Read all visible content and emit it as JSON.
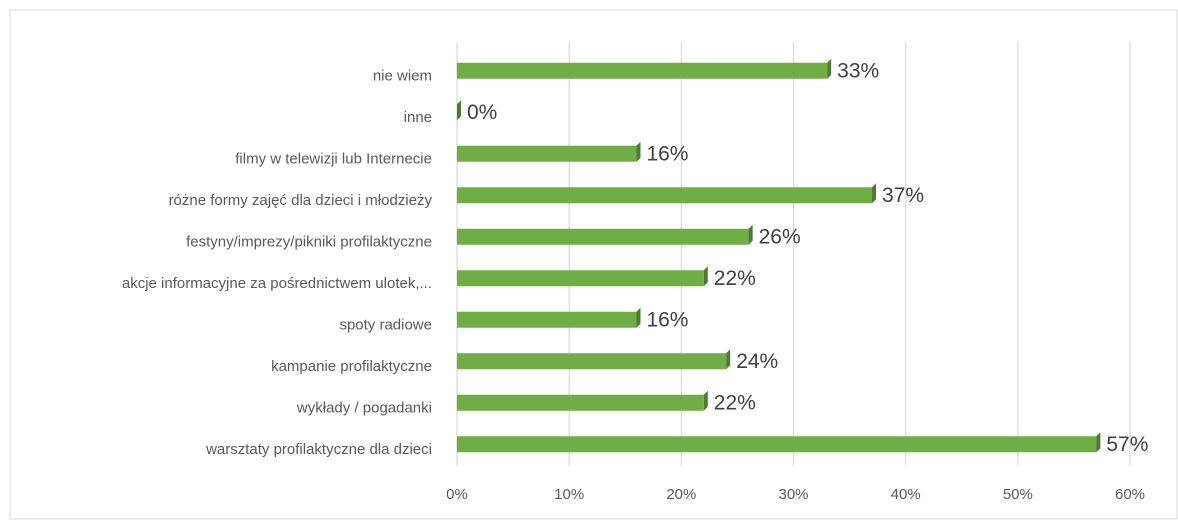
{
  "chart_data": {
    "type": "bar",
    "orientation": "horizontal",
    "categories": [
      "nie wiem",
      "inne",
      "filmy w telewizji lub Internecie",
      "różne formy zajęć dla dzieci i młodzieży",
      "festyny/imprezy/pikniki profilaktyczne",
      "akcje informacyjne za pośrednictwem ulotek,...",
      "spoty radiowe",
      "kampanie profilaktyczne",
      "wykłady / pogadanki",
      "warsztaty profilaktyczne dla dzieci"
    ],
    "values": [
      33,
      0,
      16,
      37,
      26,
      22,
      16,
      24,
      22,
      57
    ],
    "value_labels": [
      "33%",
      "0%",
      "16%",
      "37%",
      "26%",
      "22%",
      "16%",
      "24%",
      "22%",
      "57%"
    ],
    "color": "#70ad47",
    "xlim": [
      0,
      60
    ],
    "xticks": [
      {
        "value": 0,
        "label": "0%"
      },
      {
        "value": 10,
        "label": "10%"
      },
      {
        "value": 20,
        "label": "20%"
      },
      {
        "value": 30,
        "label": "30%"
      },
      {
        "value": 40,
        "label": "40%"
      },
      {
        "value": 50,
        "label": "50%"
      },
      {
        "value": 60,
        "label": "60%"
      }
    ],
    "grid": true
  }
}
